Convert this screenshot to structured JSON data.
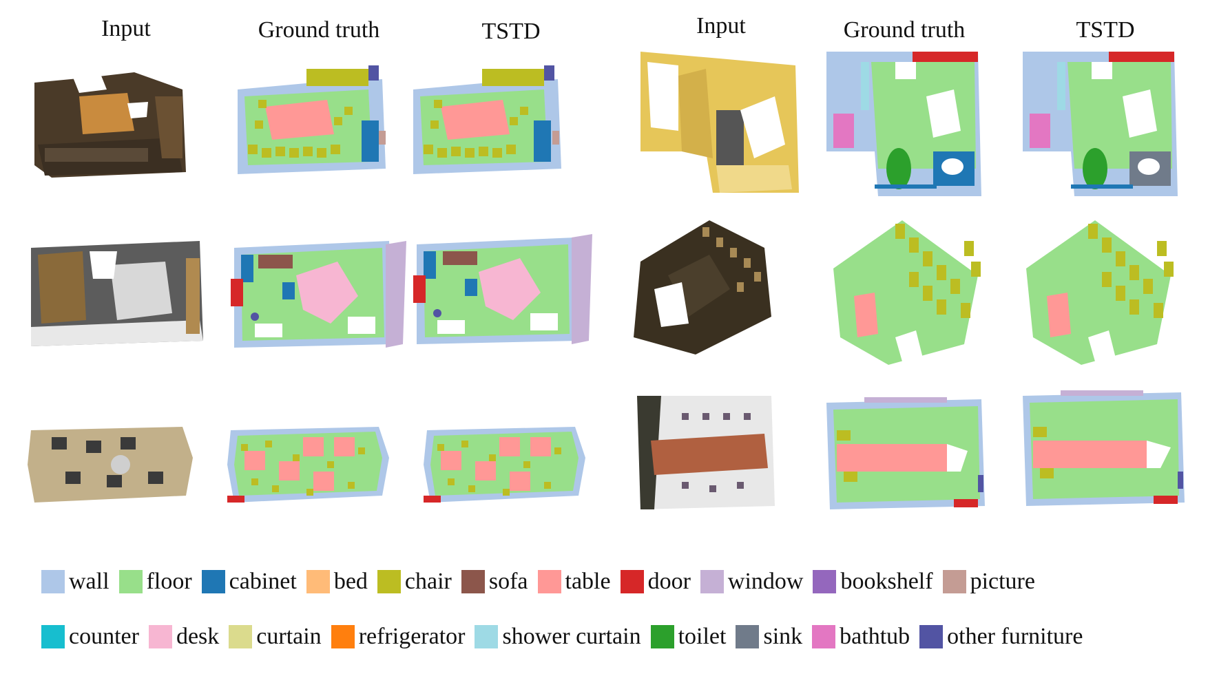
{
  "headers": {
    "left": [
      "Input",
      "Ground truth",
      "TSTD"
    ],
    "right": [
      "Input",
      "Ground truth",
      "TSTD"
    ]
  },
  "legend": {
    "row1": [
      {
        "label": "wall",
        "color": "#aec7e8"
      },
      {
        "label": "floor",
        "color": "#98df8a"
      },
      {
        "label": "cabinet",
        "color": "#1f77b4"
      },
      {
        "label": "bed",
        "color": "#ffbb78"
      },
      {
        "label": "chair",
        "color": "#bcbd22"
      },
      {
        "label": "sofa",
        "color": "#8c564b"
      },
      {
        "label": "table",
        "color": "#ff9896"
      },
      {
        "label": "door",
        "color": "#d62728"
      },
      {
        "label": "window",
        "color": "#c5b0d5"
      },
      {
        "label": "bookshelf",
        "color": "#9467bd"
      },
      {
        "label": "picture",
        "color": "#c49c94"
      }
    ],
    "row2": [
      {
        "label": "counter",
        "color": "#17becf"
      },
      {
        "label": "desk",
        "color": "#f7b6d2"
      },
      {
        "label": "curtain",
        "color": "#dbdb8d"
      },
      {
        "label": "refrigerator",
        "color": "#ff7f0e"
      },
      {
        "label": "shower curtain",
        "color": "#9edae5"
      },
      {
        "label": "toilet",
        "color": "#2ca02c"
      },
      {
        "label": "sink",
        "color": "#707b8a"
      },
      {
        "label": "bathtub",
        "color": "#e377c2"
      },
      {
        "label": "other furniture",
        "color": "#5254a3"
      }
    ]
  }
}
